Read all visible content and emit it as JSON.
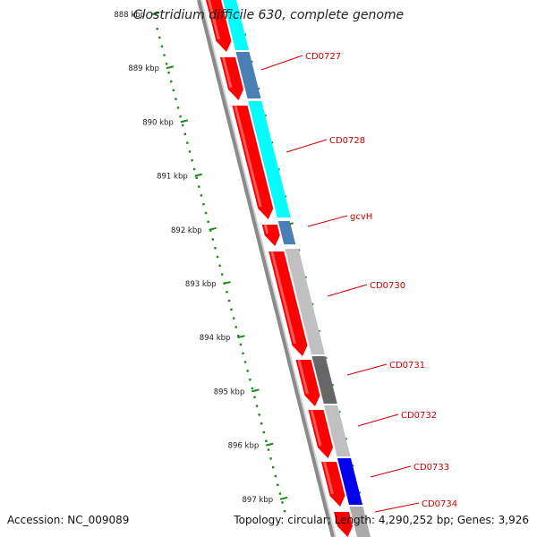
{
  "title": "Clostridium difficile 630, complete genome",
  "footer": {
    "accession_label": "Accession:",
    "accession": "NC_009089",
    "topology_label": "Topology:",
    "topology": "circular",
    "length_label": "Length:",
    "length": "4,290,252 bp",
    "genes_label": "Genes:",
    "genes": "3,926"
  },
  "ticks": [
    {
      "label": "888 kbp"
    },
    {
      "label": "889 kbp"
    },
    {
      "label": "890 kbp"
    },
    {
      "label": "891 kbp"
    },
    {
      "label": "892 kbp"
    },
    {
      "label": "893 kbp"
    },
    {
      "label": "894 kbp"
    },
    {
      "label": "895 kbp"
    },
    {
      "label": "896 kbp"
    },
    {
      "label": "897 kbp"
    }
  ],
  "gene_labels": [
    "CD0727",
    "CD0728",
    "gcvH",
    "CD0730",
    "CD0731",
    "CD0732",
    "CD0733",
    "CD0734"
  ],
  "colors": {
    "forward_strand": "#ff0000",
    "cyan_feature": "#00ffff",
    "steelblue_feature": "#4a7fb5",
    "lightgray_feature": "#c0c0c0",
    "darkgray_feature": "#666666",
    "blue_feature": "#0000ee",
    "label_color": "#cc0000",
    "tick_color": "#1a8a1a",
    "backbone": "#777777"
  }
}
